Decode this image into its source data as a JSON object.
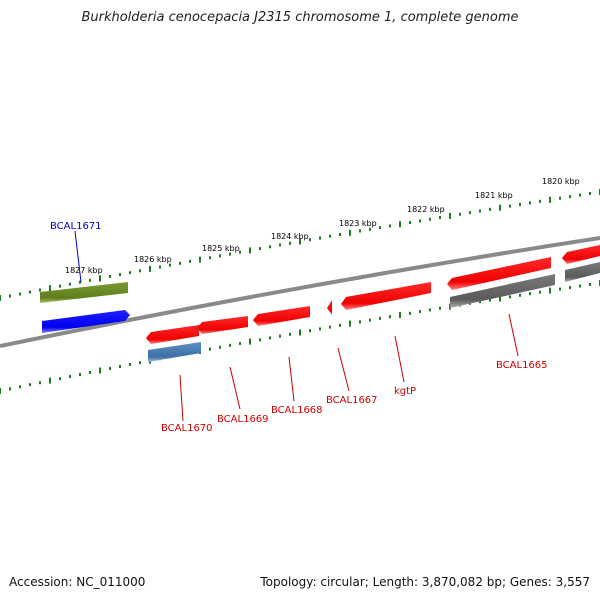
{
  "title": "Burkholderia cenocepacia J2315 chromosome 1, complete genome",
  "footer": {
    "accession": "Accession: NC_011000",
    "topology": "Topology: circular; Length: 3,870,082 bp; Genes: 3,557"
  },
  "colors": {
    "backbone": "#8a8a8a",
    "tick": "#1f7a1f",
    "gene_red": "#ff1a1a",
    "gene_gray": "#6e6e6e",
    "gene_green": "#6b8e23",
    "gene_blue": "#1414ff",
    "gene_steel": "#4a7fb5",
    "label_red": "#cc0000",
    "label_blue": "#0000cc"
  },
  "scale_labels": [
    "1827 kbp",
    "1826 kbp",
    "1825 kbp",
    "1824 kbp",
    "1823 kbp",
    "1822 kbp",
    "1821 kbp",
    "1820 kbp"
  ],
  "gene_labels": [
    "BCAL1671",
    "BCAL1670",
    "BCAL1669",
    "BCAL1668",
    "BCAL1667",
    "kgtP",
    "BCAL1665"
  ]
}
